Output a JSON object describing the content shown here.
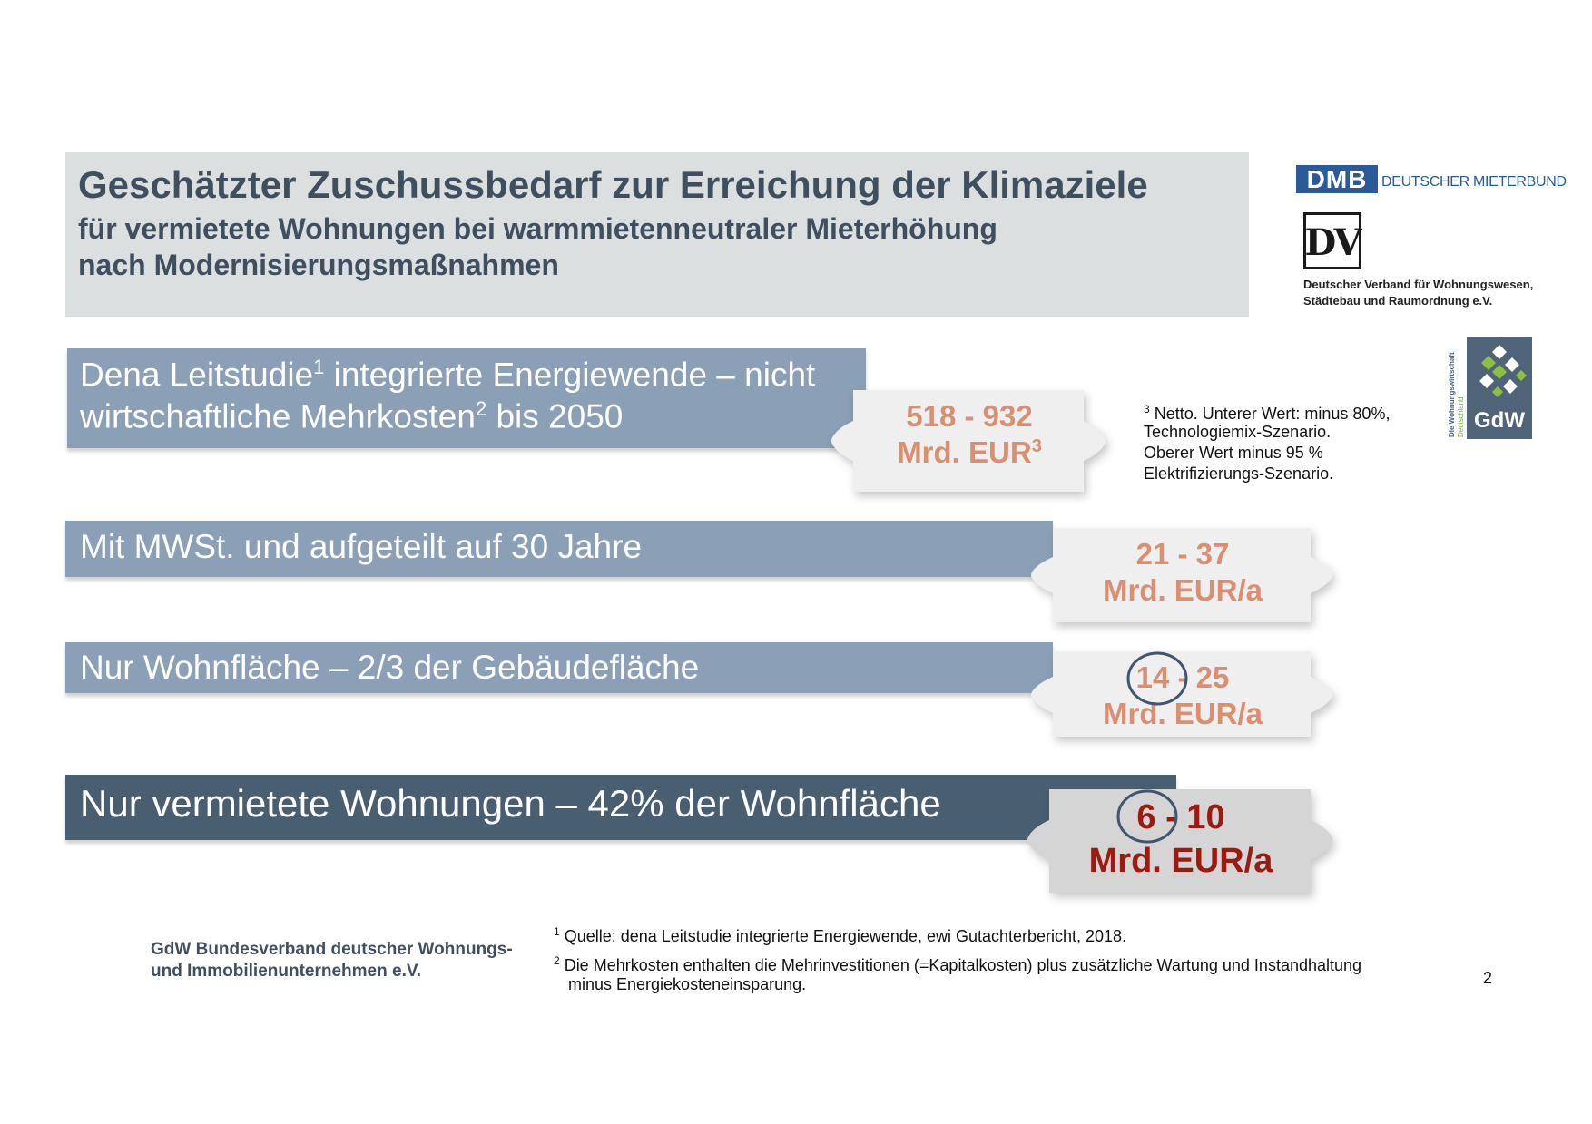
{
  "header": {
    "title": "Geschätzter Zuschussbedarf zur Erreichung der Klimaziele",
    "subtitle_line1": "für vermietete Wohnungen bei warmmietenneutraler Mieterhöhung",
    "subtitle_line2": "nach Modernisierungsmaßnahmen"
  },
  "logos": {
    "dmb_abbr": "DMB",
    "dmb_name": "DEUTSCHER MIETERBUND",
    "dv_abbr": "DV",
    "dv_name_line1": "Deutscher Verband für Wohnungswesen,",
    "dv_name_line2": "Städtebau und Raumordnung e.V.",
    "gdw_abbr": "GdW",
    "gdw_vertical_line1": "Die Wohnungswirtschaft",
    "gdw_vertical_line2": "Deutschland",
    "accent_color": "#2a5a9a"
  },
  "rows": [
    {
      "label_line1_a": "Dena Leitstudie",
      "label_line1_sup": "1",
      "label_line1_b": " integrierte Energiewende – nicht",
      "label_line2_a": "wirtschaftliche Mehrkosten",
      "label_line2_sup": "2",
      "label_line2_b": " bis 2050",
      "value_line1": "518 - 932",
      "value_line2": "Mrd. EUR",
      "value_sup": "3"
    },
    {
      "label": "Mit MWSt. und aufgeteilt auf 30 Jahre",
      "value_line1": "21 - 37",
      "value_line2": "Mrd. EUR/a"
    },
    {
      "label": "Nur Wohnfläche – 2/3 der Gebäudefläche",
      "value_line1": "14 - 25",
      "value_line2": "Mrd. EUR/a"
    },
    {
      "label": "Nur vermietete Wohnungen – 42% der Wohnfläche",
      "value_line1": "6 - 10",
      "value_line2": "Mrd. EUR/a"
    }
  ],
  "note3": {
    "sup": "3",
    "line1": " Netto. Unterer Wert: minus 80%,",
    "line2": "Technologiemix-Szenario.",
    "line3": "Oberer Wert minus 95 %",
    "line4": "Elektrifizierungs-Szenario."
  },
  "footer": {
    "org_line1": "GdW Bundesverband deutscher Wohnungs-",
    "org_line2": "und Immobilienunternehmen e.V.",
    "fn1_sup": "1",
    "fn1": " Quelle: dena Leitstudie integrierte Energiewende, ewi Gutachterbericht, 2018.",
    "fn2_sup": "2",
    "fn2_line1": " Die Mehrkosten enthalten die Mehrinvestitionen (=Kapitalkosten) plus zusätzliche Wartung und Instandhaltung",
    "fn2_line2": "minus Energiekosteneinsparung.",
    "page_number": "2"
  },
  "colors": {
    "bar_light": "#8ba0b6",
    "bar_dark": "#4a5e72",
    "value_light": "#d98f72",
    "value_dark": "#9b1a12",
    "circle": "#3f5570"
  }
}
